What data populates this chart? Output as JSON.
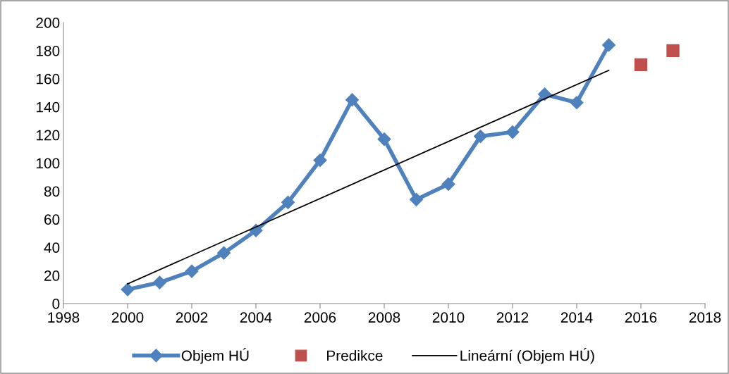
{
  "chart_data": {
    "type": "line",
    "series": [
      {
        "name": "Objem HÚ",
        "color": "#4f81bd",
        "marker": "diamond",
        "x": [
          2000,
          2001,
          2002,
          2003,
          2004,
          2005,
          2006,
          2007,
          2008,
          2009,
          2010,
          2011,
          2012,
          2013,
          2014,
          2015
        ],
        "values": [
          10,
          15,
          23,
          36,
          52,
          72,
          102,
          145,
          117,
          74,
          85,
          119,
          122,
          149,
          143,
          184
        ]
      },
      {
        "name": "Predikce",
        "type": "scatter",
        "color": "#c0504d",
        "marker": "square",
        "x": [
          2016,
          2017
        ],
        "values": [
          170,
          180
        ]
      },
      {
        "name": "Lineární (Objem HÚ)",
        "type": "line",
        "color": "#000000",
        "marker": "none",
        "x": [
          2000,
          2015
        ],
        "values": [
          14,
          166
        ]
      }
    ],
    "xlim": [
      1998,
      2018
    ],
    "xticks": [
      1998,
      2000,
      2002,
      2004,
      2006,
      2008,
      2010,
      2012,
      2014,
      2016,
      2018
    ],
    "ylim": [
      0,
      200
    ],
    "yticks": [
      0,
      20,
      40,
      60,
      80,
      100,
      120,
      140,
      160,
      180,
      200
    ],
    "grid": false,
    "legend": "bottom"
  }
}
